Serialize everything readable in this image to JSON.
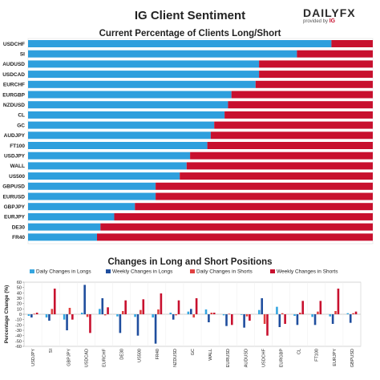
{
  "header": {
    "title": "IG Client Sentiment",
    "logo_main": "DAILYFX",
    "logo_sub": "provided by",
    "logo_ig": "IG"
  },
  "colors": {
    "long": "#2e9fdd",
    "short": "#c8102e",
    "weekly_long": "#1f4e9e",
    "weekly_short": "#c8102e",
    "daily_long": "#35a6e0",
    "daily_short": "#e04040"
  },
  "chart_data": [
    {
      "type": "bar",
      "orientation": "horizontal",
      "stacked": true,
      "title": "Current Percentage of Clients Long/Short",
      "categories": [
        "USDCHF",
        "SI",
        "AUDUSD",
        "USDCAD",
        "EURCHF",
        "EURGBP",
        "NZDUSD",
        "CL",
        "GC",
        "AUDJPY",
        "FT100",
        "USDJPY",
        "WALL",
        "US500",
        "GBPUSD",
        "EURUSD",
        "GBPJPY",
        "EURJPY",
        "DE30",
        "FR40"
      ],
      "series": [
        {
          "values": [
            88,
            78,
            67,
            67,
            66,
            59,
            58,
            57,
            54,
            53,
            52,
            47,
            46,
            44,
            37,
            37,
            31,
            25,
            21,
            20
          ]
        },
        {
          "values": [
            12,
            22,
            33,
            33,
            34,
            41,
            42,
            43,
            46,
            47,
            48,
            53,
            54,
            56,
            63,
            63,
            69,
            75,
            79,
            80
          ]
        }
      ],
      "xlim": [
        0,
        100
      ]
    },
    {
      "type": "bar",
      "title": "Changes in Long and Short Positions",
      "ylabel": "Percentage Change (%)",
      "categories": [
        "USDJPY",
        "SI",
        "GBPJPY",
        "USDCAD",
        "EURCHF",
        "DE30",
        "US500",
        "FR40",
        "NZDUSD",
        "GC",
        "WALL",
        "EURUSD",
        "AUDUSD",
        "USDCHF",
        "EURGBP",
        "CL",
        "FT100",
        "EURJPY",
        "GBPUSD"
      ],
      "ylim": [
        -60,
        60
      ],
      "yticks": [
        -60,
        -50,
        -40,
        -30,
        -20,
        -10,
        0,
        10,
        20,
        30,
        40,
        50,
        60
      ],
      "series": [
        {
          "name": "Daily Changes in Longs",
          "values": [
            -3,
            -6,
            -10,
            3,
            10,
            -4,
            -5,
            -6,
            3,
            5,
            9,
            -2,
            0,
            8,
            14,
            -3,
            -5,
            -4,
            2
          ]
        },
        {
          "name": "Weekly Changes in Longs",
          "values": [
            -6,
            -12,
            -30,
            55,
            30,
            -35,
            -40,
            -55,
            -10,
            10,
            -15,
            -22,
            -25,
            30,
            -24,
            -20,
            -20,
            -18,
            -16
          ]
        },
        {
          "name": "Daily Changes in Shorts",
          "values": [
            1,
            10,
            12,
            -5,
            -2,
            6,
            8,
            9,
            -2,
            -6,
            3,
            1,
            -4,
            -18,
            2,
            3,
            5,
            6,
            2
          ]
        },
        {
          "name": "Weekly Changes in Shorts",
          "values": [
            3,
            48,
            -10,
            -35,
            13,
            26,
            28,
            39,
            26,
            30,
            3,
            -20,
            -12,
            -40,
            -18,
            25,
            25,
            48,
            5
          ]
        }
      ]
    }
  ]
}
